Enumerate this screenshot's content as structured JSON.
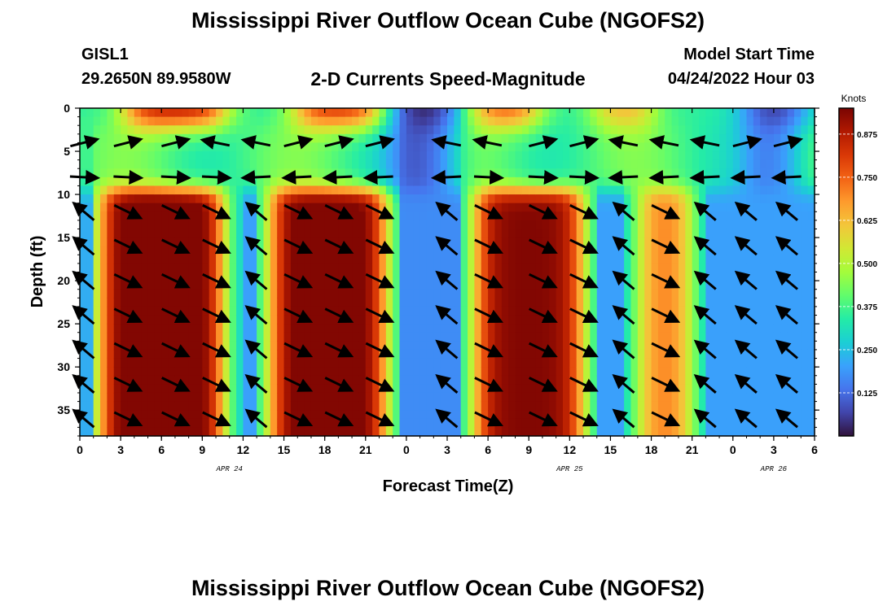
{
  "header": {
    "title": "Mississippi River Outflow Ocean Cube (NGOFS2)",
    "title_bottom": "Mississippi River Outflow Ocean Cube (NGOFS2)",
    "station_id": "GISL1",
    "station_coords": "29.2650N  89.9580W",
    "subtitle": "2-D Currents Speed-Magnitude",
    "model_start_label": "Model Start Time",
    "model_start_value": "04/24/2022 Hour 03"
  },
  "chart_data": {
    "type": "heatmap",
    "variable": "current speed magnitude with direction vectors",
    "xlabel": "Forecast Time(Z)",
    "ylabel": "Depth (ft)",
    "x_range_hours": [
      0,
      54
    ],
    "y_range_ft": [
      0,
      38
    ],
    "y_inverted": true,
    "x_ticks": [
      "0",
      "3",
      "6",
      "9",
      "12",
      "15",
      "18",
      "21",
      "0",
      "3",
      "6",
      "9",
      "12",
      "15",
      "18",
      "21",
      "0",
      "3",
      "6"
    ],
    "y_ticks": [
      "0",
      "5",
      "10",
      "15",
      "20",
      "25",
      "30",
      "35"
    ],
    "date_labels": [
      {
        "text": "APR 24",
        "hour": 11
      },
      {
        "text": "APR 25",
        "hour": 36
      },
      {
        "text": "APR 26",
        "hour": 51
      }
    ],
    "colorbar": {
      "units": "Knots",
      "range": [
        0,
        0.95
      ],
      "ticks": [
        "0.125",
        "0.250",
        "0.375",
        "0.500",
        "0.625",
        "0.750",
        "0.875"
      ],
      "colormap": [
        "#30123b",
        "#4145ab",
        "#4675ed",
        "#39a2fc",
        "#1bcfd4",
        "#24eca6",
        "#61fc6c",
        "#a4fc3b",
        "#d1e834",
        "#f3c63a",
        "#fe9b2d",
        "#f36315",
        "#d93806",
        "#b11901",
        "#7a0402"
      ]
    },
    "speed_peaks": [
      {
        "start_hour": 1.5,
        "end_hour": 10.5,
        "peak_knots": 0.92
      },
      {
        "start_hour": 14,
        "end_hour": 22.5,
        "peak_knots": 0.9
      },
      {
        "start_hour": 29,
        "end_hour": 37,
        "peak_knots": 0.85
      },
      {
        "start_hour": 41,
        "end_hour": 45,
        "peak_knots": 0.6
      }
    ],
    "vector_columns_hours": [
      0.3,
      3.5,
      7,
      10,
      13,
      16,
      19,
      22,
      27,
      30,
      34,
      37,
      40,
      43,
      46,
      49,
      52
    ],
    "vector_depths_ft": [
      4,
      8,
      12,
      16,
      20,
      24,
      28,
      32,
      36
    ]
  }
}
